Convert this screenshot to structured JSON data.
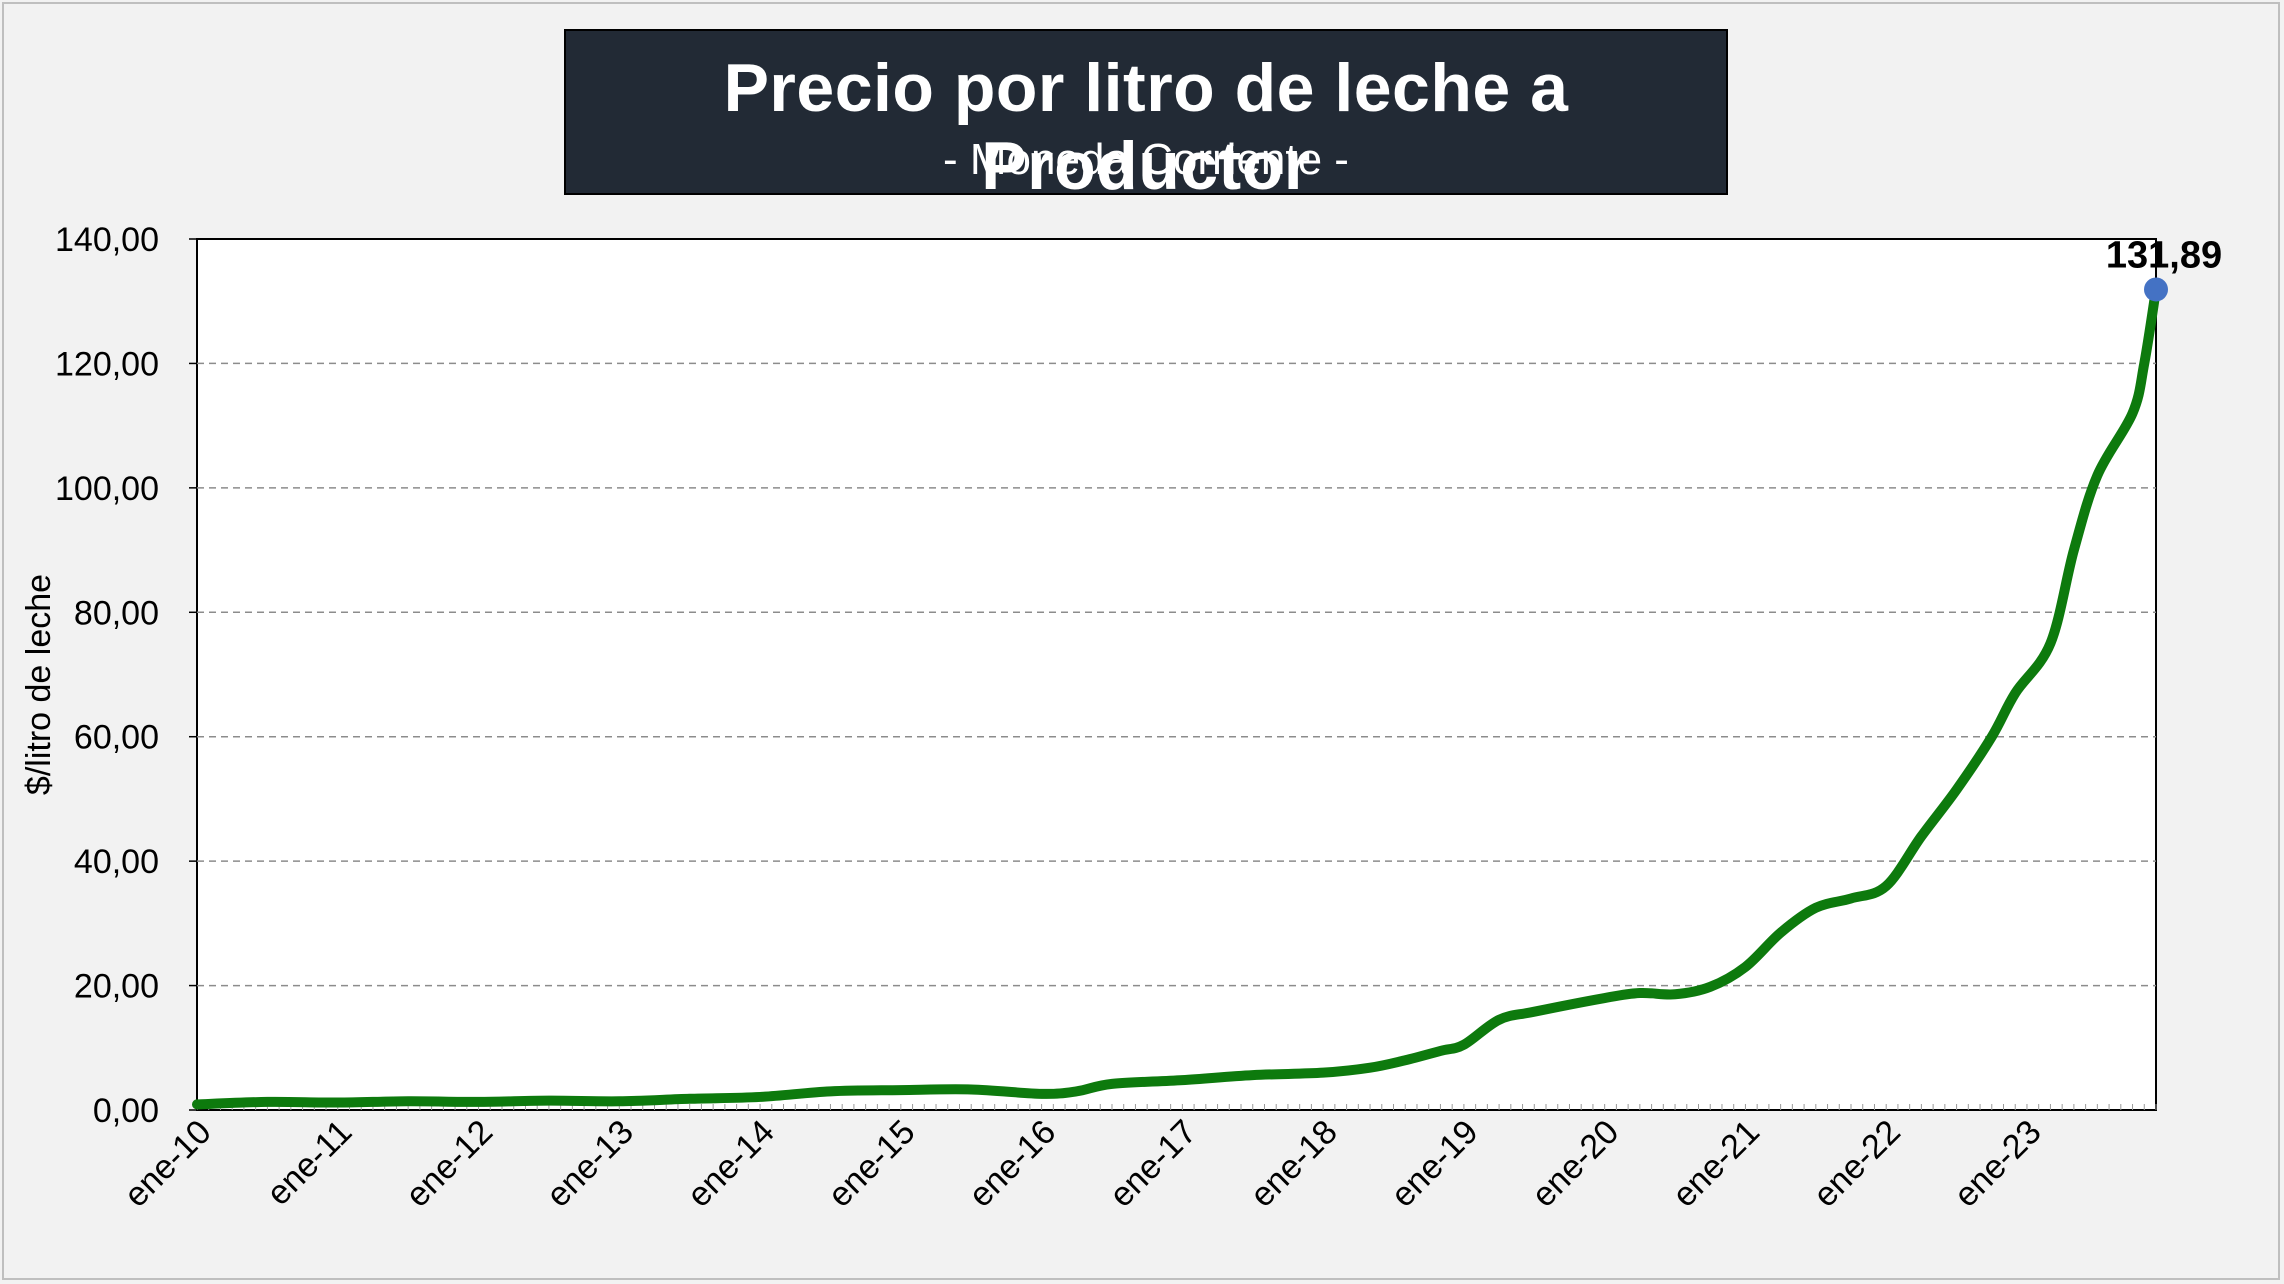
{
  "chart_data": {
    "type": "line",
    "title": "Precio por litro de leche a Productor",
    "subtitle": "- Moneda Corriente -",
    "ylabel": "$/litro de leche",
    "xlabel": "",
    "ylim": [
      0,
      140
    ],
    "y_ticks": [
      "0,00",
      "20,00",
      "40,00",
      "60,00",
      "80,00",
      "100,00",
      "120,00",
      "140,00"
    ],
    "y_tick_values": [
      0,
      20,
      40,
      60,
      80,
      100,
      120,
      140
    ],
    "x_tick_labels": [
      "ene-10",
      "ene-11",
      "ene-12",
      "ene-13",
      "ene-14",
      "ene-15",
      "ene-16",
      "ene-17",
      "ene-18",
      "ene-19",
      "ene-20",
      "ene-21",
      "ene-22",
      "ene-23"
    ],
    "x_range": [
      "ene-10",
      "dic-23"
    ],
    "grid": "horizontal-dashed",
    "legend": "none",
    "series": [
      {
        "name": "",
        "color": "#0d7a0d",
        "points": [
          [
            "ene-10",
            0.9
          ],
          [
            "jul-10",
            1.3
          ],
          [
            "ene-11",
            1.2
          ],
          [
            "jul-11",
            1.4
          ],
          [
            "ene-12",
            1.3
          ],
          [
            "jul-12",
            1.5
          ],
          [
            "ene-13",
            1.4
          ],
          [
            "jul-13",
            1.8
          ],
          [
            "ene-14",
            2.1
          ],
          [
            "jul-14",
            3.0
          ],
          [
            "ene-15",
            3.2
          ],
          [
            "jul-15",
            3.3
          ],
          [
            "ene-16",
            2.6
          ],
          [
            "abr-16",
            3.0
          ],
          [
            "jul-16",
            4.2
          ],
          [
            "ene-17",
            4.8
          ],
          [
            "jul-17",
            5.6
          ],
          [
            "ene-18",
            6.0
          ],
          [
            "may-18",
            6.8
          ],
          [
            "ago-18",
            8.0
          ],
          [
            "nov-18",
            9.5
          ],
          [
            "ene-19",
            10.5
          ],
          [
            "abr-19",
            14.5
          ],
          [
            "jul-19",
            15.8
          ],
          [
            "ene-20",
            18.0
          ],
          [
            "abr-20",
            18.8
          ],
          [
            "jul-20",
            18.6
          ],
          [
            "oct-20",
            19.8
          ],
          [
            "ene-21",
            23.0
          ],
          [
            "abr-21",
            28.5
          ],
          [
            "jul-21",
            32.5
          ],
          [
            "oct-21",
            34.0
          ],
          [
            "ene-22",
            36.0
          ],
          [
            "abr-22",
            44.0
          ],
          [
            "jul-22",
            51.5
          ],
          [
            "oct-22",
            60.0
          ],
          [
            "dic-22",
            67.0
          ],
          [
            "mar-23",
            75.0
          ],
          [
            "may-23",
            90.0
          ],
          [
            "jul-23",
            102.0
          ],
          [
            "oct-23",
            112.0
          ],
          [
            "nov-23",
            120.0
          ],
          [
            "dic-23",
            131.89
          ]
        ]
      }
    ],
    "annotations": [
      {
        "x": "dic-23",
        "y": 131.89,
        "label": "131,89",
        "marker_color": "#4472c4"
      }
    ]
  }
}
